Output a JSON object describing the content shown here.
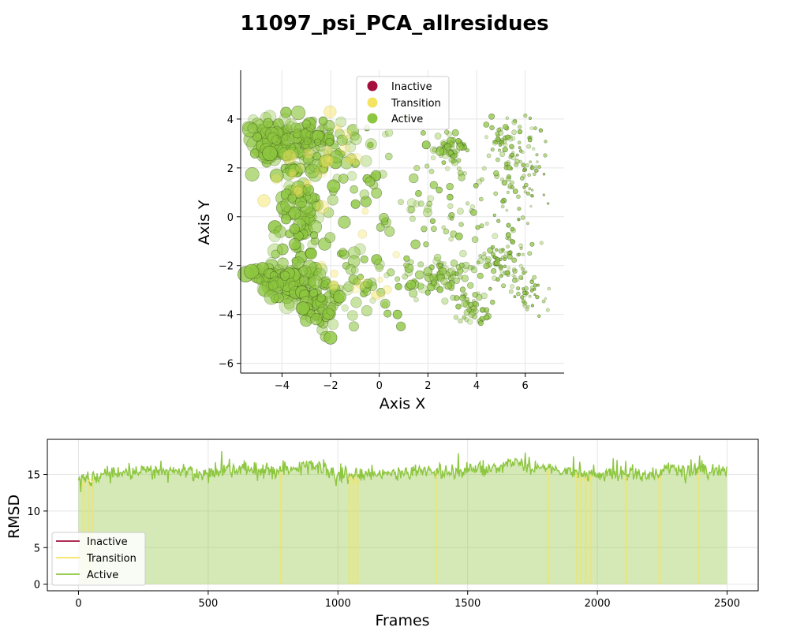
{
  "title": "11097_psi_PCA_allresidues",
  "colors": {
    "inactive": "#a50f3d",
    "transition": "#f4e461",
    "active": "#8dc63f"
  },
  "chart_data": [
    {
      "type": "scatter",
      "xlabel": "Axis X",
      "ylabel": "Axis Y",
      "xlim": [
        -5.7,
        7.6
      ],
      "ylim": [
        -6.4,
        6.0
      ],
      "xticks": [
        -4,
        -2,
        0,
        2,
        4,
        6
      ],
      "yticks": [
        -6,
        -4,
        -2,
        0,
        2,
        4
      ],
      "grid": true,
      "legend": {
        "placement": "top-center",
        "entries": [
          "Inactive",
          "Transition",
          "Active"
        ]
      },
      "clusters": [
        {
          "name": "Active",
          "cx": -4.2,
          "cy": 3.1,
          "sx": 0.7,
          "sy": 0.45,
          "n": 110
        },
        {
          "name": "Active",
          "cx": -2.5,
          "cy": 3.0,
          "sx": 0.7,
          "sy": 0.6,
          "n": 80
        },
        {
          "name": "Active",
          "cx": -3.3,
          "cy": 0.0,
          "sx": 0.45,
          "sy": 1.1,
          "n": 80
        },
        {
          "name": "Active",
          "cx": -3.8,
          "cy": -2.6,
          "sx": 0.8,
          "sy": 0.45,
          "n": 120
        },
        {
          "name": "Active",
          "cx": -2.4,
          "cy": -3.6,
          "sx": 0.5,
          "sy": 0.5,
          "n": 60
        },
        {
          "name": "Active",
          "cx": -0.5,
          "cy": -2.4,
          "sx": 1.0,
          "sy": 0.9,
          "n": 50
        },
        {
          "name": "Active",
          "cx": -0.5,
          "cy": 1.5,
          "sx": 1.2,
          "sy": 1.4,
          "n": 55
        },
        {
          "name": "Active",
          "cx": 2.9,
          "cy": 2.8,
          "sx": 0.4,
          "sy": 0.35,
          "n": 45
        },
        {
          "name": "Active",
          "cx": 2.9,
          "cy": 0.6,
          "sx": 0.9,
          "sy": 1.1,
          "n": 50
        },
        {
          "name": "Active",
          "cx": 2.6,
          "cy": -2.5,
          "sx": 0.7,
          "sy": 0.5,
          "n": 70
        },
        {
          "name": "Active",
          "cx": 3.9,
          "cy": -3.7,
          "sx": 0.4,
          "sy": 0.4,
          "n": 40
        },
        {
          "name": "Active",
          "cx": 5.4,
          "cy": 3.0,
          "sx": 0.55,
          "sy": 0.6,
          "n": 80
        },
        {
          "name": "Active",
          "cx": 5.6,
          "cy": 0.8,
          "sx": 0.6,
          "sy": 1.2,
          "n": 60
        },
        {
          "name": "Active",
          "cx": 5.1,
          "cy": -1.9,
          "sx": 0.6,
          "sy": 0.45,
          "n": 80
        },
        {
          "name": "Active",
          "cx": 6.2,
          "cy": -3.2,
          "sx": 0.35,
          "sy": 0.35,
          "n": 35
        },
        {
          "name": "Transition",
          "cx": -2.6,
          "cy": 1.5,
          "sx": 1.0,
          "sy": 1.3,
          "n": 25
        },
        {
          "name": "Transition",
          "cx": -0.5,
          "cy": -2.8,
          "sx": 0.8,
          "sy": 0.6,
          "n": 10
        }
      ]
    },
    {
      "type": "line",
      "xlabel": "Frames",
      "ylabel": "RMSD",
      "xlim": [
        -120,
        2620
      ],
      "ylim": [
        -0.9,
        19.8
      ],
      "xticks": [
        0,
        500,
        1000,
        1500,
        2000,
        2500
      ],
      "yticks": [
        0,
        5,
        10,
        15
      ],
      "grid": true,
      "legend": {
        "placement": "lower-left",
        "entries": [
          "Inactive",
          "Transition",
          "Active"
        ]
      },
      "frames": [
        0,
        2500
      ],
      "rmsd_profile": [
        {
          "frame": 0,
          "rmsd": 14.3
        },
        {
          "frame": 100,
          "rmsd": 15.0
        },
        {
          "frame": 200,
          "rmsd": 15.4
        },
        {
          "frame": 300,
          "rmsd": 15.6
        },
        {
          "frame": 400,
          "rmsd": 15.3
        },
        {
          "frame": 500,
          "rmsd": 15.0
        },
        {
          "frame": 600,
          "rmsd": 15.8
        },
        {
          "frame": 700,
          "rmsd": 15.5
        },
        {
          "frame": 800,
          "rmsd": 15.6
        },
        {
          "frame": 900,
          "rmsd": 16.4
        },
        {
          "frame": 1000,
          "rmsd": 15.2
        },
        {
          "frame": 1100,
          "rmsd": 15.0
        },
        {
          "frame": 1200,
          "rmsd": 15.0
        },
        {
          "frame": 1300,
          "rmsd": 15.6
        },
        {
          "frame": 1400,
          "rmsd": 15.5
        },
        {
          "frame": 1500,
          "rmsd": 15.5
        },
        {
          "frame": 1600,
          "rmsd": 15.9
        },
        {
          "frame": 1700,
          "rmsd": 16.6
        },
        {
          "frame": 1800,
          "rmsd": 15.8
        },
        {
          "frame": 1900,
          "rmsd": 15.4
        },
        {
          "frame": 2000,
          "rmsd": 14.9
        },
        {
          "frame": 2100,
          "rmsd": 15.0
        },
        {
          "frame": 2200,
          "rmsd": 15.0
        },
        {
          "frame": 2300,
          "rmsd": 15.6
        },
        {
          "frame": 2400,
          "rmsd": 15.6
        },
        {
          "frame": 2500,
          "rmsd": 15.3
        }
      ],
      "transition_frames": [
        20,
        40,
        55,
        780,
        1045,
        1060,
        1075,
        1380,
        1810,
        1920,
        1935,
        1955,
        1975,
        2110,
        2240,
        2390
      ]
    }
  ]
}
